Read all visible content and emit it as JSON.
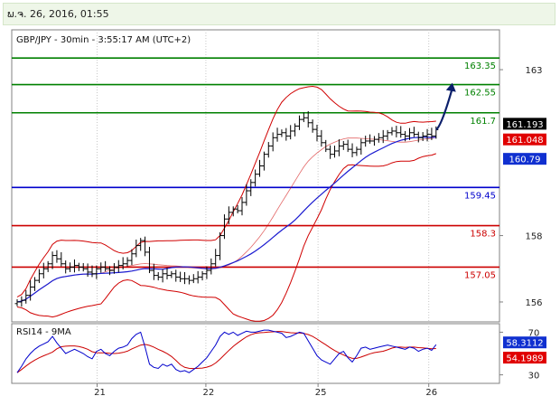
{
  "header": {
    "datetime": "ພ.ຈ. 26, 2016, 01:55"
  },
  "chart_data": {
    "type": "candlestick",
    "title": "GBP/JPY - 30min - 3:55:17 AM (UTC+2)",
    "colors": {
      "background": "#ffffff",
      "frame": "#808080",
      "price": "#000000",
      "bollinger": "#d00000",
      "moving_average": "#1a1ad0",
      "green_levels": "#008000",
      "red_levels": "#cc0000",
      "blue_level": "#0000cc",
      "arrow": "#0b1f6b",
      "rsi_line": "#0000cc",
      "rsi_ma": "#cc0000"
    },
    "price_axis": {
      "min": 155.4,
      "max": 164.2,
      "ticks": [
        156,
        158,
        163
      ]
    },
    "x_ticks": [
      {
        "label": "21",
        "pos": 0.175
      },
      {
        "label": "22",
        "pos": 0.398
      },
      {
        "label": "25",
        "pos": 0.628
      },
      {
        "label": "26",
        "pos": 0.855
      }
    ],
    "levels": [
      {
        "label": "163.35",
        "value": 163.35,
        "kind": "resistance"
      },
      {
        "label": "162.55",
        "value": 162.55,
        "kind": "resistance"
      },
      {
        "label": "161.7",
        "value": 161.7,
        "kind": "resistance"
      },
      {
        "label": "159.45",
        "value": 159.45,
        "kind": "pivot"
      },
      {
        "label": "158.3",
        "value": 158.3,
        "kind": "support"
      },
      {
        "label": "157.05",
        "value": 157.05,
        "kind": "support"
      }
    ],
    "price_badges": [
      {
        "label": "161.193",
        "value": 161.193,
        "style": "last"
      },
      {
        "label": "161.048",
        "value": 161.048,
        "style": "bollinger"
      },
      {
        "label": "160.79",
        "value": 160.79,
        "style": "ma"
      }
    ],
    "close_series": [
      156.0,
      156.05,
      156.2,
      156.45,
      156.65,
      156.85,
      157.0,
      157.15,
      157.4,
      157.3,
      157.15,
      157.0,
      157.05,
      157.1,
      157.05,
      157.0,
      156.9,
      156.85,
      157.0,
      157.05,
      157.0,
      156.95,
      157.05,
      157.1,
      157.15,
      157.25,
      157.45,
      157.7,
      157.85,
      157.5,
      156.95,
      156.8,
      156.75,
      156.85,
      156.8,
      156.85,
      156.75,
      156.7,
      156.7,
      156.65,
      156.7,
      156.75,
      156.85,
      156.95,
      157.15,
      157.4,
      158.0,
      158.5,
      158.7,
      158.8,
      158.75,
      159.0,
      159.35,
      159.6,
      159.85,
      160.1,
      160.45,
      160.7,
      160.95,
      161.05,
      161.1,
      161.0,
      161.15,
      161.3,
      161.5,
      161.55,
      161.4,
      161.2,
      161.0,
      160.8,
      160.6,
      160.45,
      160.55,
      160.7,
      160.75,
      160.6,
      160.5,
      160.6,
      160.8,
      160.85,
      160.85,
      160.9,
      160.95,
      161.0,
      161.1,
      161.15,
      161.1,
      161.05,
      161.0,
      161.1,
      161.05,
      160.95,
      161.0,
      161.05,
      161.0,
      161.19
    ],
    "projection": {
      "to": 162.55
    },
    "rsi": {
      "label": "RSI14 - 9MA",
      "min": 22,
      "max": 78,
      "ticks": [
        70,
        30
      ],
      "badges": [
        {
          "label": "58.3112",
          "value": 58.3112,
          "style": "rsi"
        },
        {
          "label": "54.1989",
          "value": 54.1989,
          "style": "ma"
        }
      ],
      "values": [
        32,
        38,
        45,
        50,
        54,
        57,
        59,
        61,
        66,
        60,
        55,
        50,
        52,
        54,
        52,
        50,
        47,
        45,
        52,
        54,
        50,
        48,
        52,
        55,
        56,
        58,
        64,
        68,
        70,
        56,
        40,
        37,
        36,
        40,
        38,
        40,
        35,
        33,
        34,
        32,
        35,
        38,
        42,
        46,
        52,
        58,
        66,
        70,
        68,
        70,
        67,
        69,
        71,
        70,
        70,
        71,
        72,
        72,
        71,
        70,
        69,
        65,
        66,
        68,
        70,
        69,
        62,
        55,
        48,
        44,
        42,
        40,
        45,
        50,
        52,
        46,
        42,
        48,
        55,
        56,
        54,
        55,
        56,
        57,
        58,
        57,
        56,
        55,
        54,
        56,
        55,
        52,
        54,
        55,
        53,
        58.3
      ]
    }
  }
}
